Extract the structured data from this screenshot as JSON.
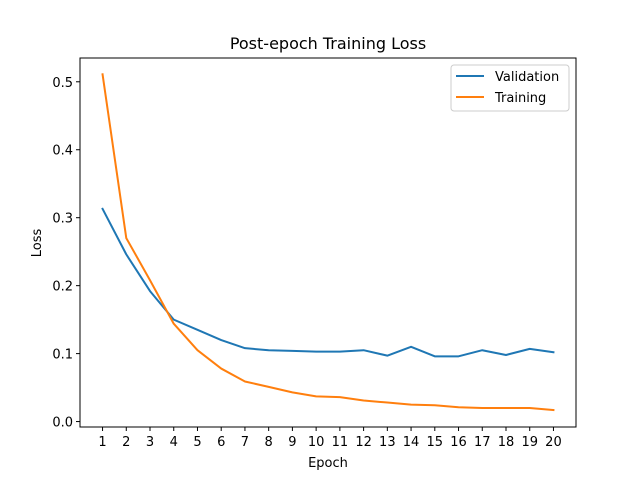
{
  "chart_data": {
    "type": "line",
    "title": "Post-epoch Training Loss",
    "xlabel": "Epoch",
    "ylabel": "Loss",
    "x": [
      1,
      2,
      3,
      4,
      5,
      6,
      7,
      8,
      9,
      10,
      11,
      12,
      13,
      14,
      15,
      16,
      17,
      18,
      19,
      20
    ],
    "xlim": [
      0.05,
      20.95
    ],
    "ylim": [
      -0.008,
      0.535
    ],
    "yticks": [
      0.0,
      0.1,
      0.2,
      0.3,
      0.4,
      0.5
    ],
    "ytick_labels": [
      "0.0",
      "0.1",
      "0.2",
      "0.3",
      "0.4",
      "0.5"
    ],
    "xtick_labels": [
      "1",
      "2",
      "3",
      "4",
      "5",
      "6",
      "7",
      "8",
      "9",
      "10",
      "11",
      "12",
      "13",
      "14",
      "15",
      "16",
      "17",
      "18",
      "19",
      "20"
    ],
    "grid": false,
    "legend_position": "top-right",
    "series": [
      {
        "name": "Validation",
        "color": "#1f77b4",
        "values": [
          0.313,
          0.246,
          0.192,
          0.15,
          0.135,
          0.12,
          0.108,
          0.105,
          0.104,
          0.103,
          0.103,
          0.105,
          0.097,
          0.11,
          0.096,
          0.096,
          0.105,
          0.098,
          0.107,
          0.102
        ]
      },
      {
        "name": "Training",
        "color": "#ff7f0e",
        "values": [
          0.511,
          0.27,
          0.208,
          0.144,
          0.105,
          0.078,
          0.059,
          0.051,
          0.043,
          0.037,
          0.036,
          0.031,
          0.028,
          0.025,
          0.024,
          0.021,
          0.02,
          0.02,
          0.02,
          0.017
        ]
      }
    ]
  }
}
